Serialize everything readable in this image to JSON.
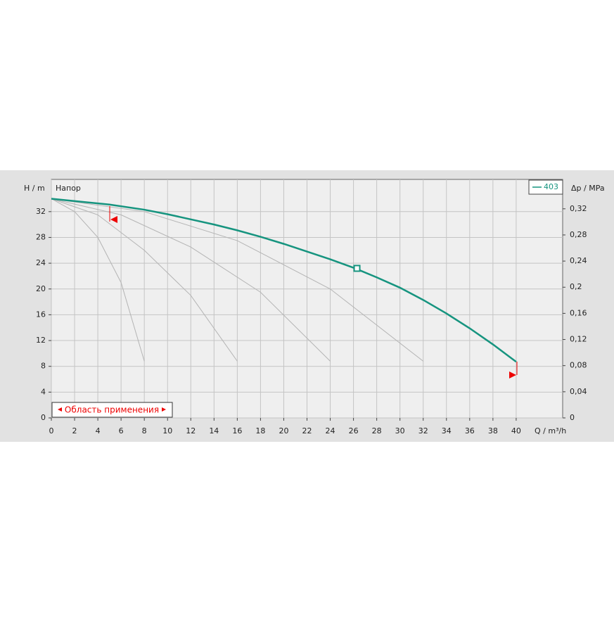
{
  "chart_data": {
    "type": "line",
    "y_label": "H / m",
    "y_title": "Напор",
    "y2_label": "Δp / MPa",
    "x_label": "Q / m³/h",
    "annotation": "Область применения",
    "xlim": [
      0,
      44
    ],
    "ylim": [
      0,
      37
    ],
    "y2lim": [
      0,
      0.365
    ],
    "xticks": [
      0,
      2,
      4,
      6,
      8,
      10,
      12,
      14,
      16,
      18,
      20,
      22,
      24,
      26,
      28,
      30,
      32,
      34,
      36,
      38,
      40
    ],
    "yticks": [
      0,
      4,
      8,
      12,
      16,
      20,
      24,
      28,
      32
    ],
    "y2ticks": [
      0,
      {
        "value": 0.04,
        "label": "0,04"
      },
      {
        "value": 0.08,
        "label": "0,08"
      },
      {
        "value": 0.12,
        "label": "0,12"
      },
      {
        "value": 0.16,
        "label": "0,16"
      },
      {
        "value": 0.2,
        "label": "0,2"
      },
      {
        "value": 0.24,
        "label": "0,24"
      },
      {
        "value": 0.28,
        "label": "0,28"
      },
      {
        "value": 0.32,
        "label": "0,32"
      }
    ],
    "grid": true,
    "series": [
      {
        "color": "#b4b4b4",
        "x": [
          0,
          2,
          4,
          6,
          8
        ],
        "values": [
          34,
          32,
          28,
          21,
          8.8
        ]
      },
      {
        "color": "#b4b4b4",
        "x": [
          0,
          4,
          8,
          12,
          16
        ],
        "values": [
          34,
          31.5,
          26,
          19,
          8.8
        ]
      },
      {
        "color": "#b4b4b4",
        "x": [
          0,
          6,
          12,
          18,
          24
        ],
        "values": [
          34,
          31.5,
          26.5,
          19.5,
          8.8
        ]
      },
      {
        "color": "#b4b4b4",
        "x": [
          0,
          8,
          16,
          24,
          32
        ],
        "values": [
          34,
          32,
          27.5,
          20,
          8.8
        ]
      },
      {
        "name": "403",
        "color": "#16947f",
        "x": [
          0,
          5,
          8,
          10,
          12,
          14,
          16,
          18,
          20,
          22,
          24,
          26,
          28,
          30,
          32,
          34,
          36,
          38,
          40
        ],
        "values": [
          34,
          33.1,
          32.3,
          31.6,
          30.8,
          30.0,
          29.1,
          28.1,
          27.0,
          25.8,
          24.6,
          23.3,
          21.8,
          20.2,
          18.3,
          16.2,
          13.9,
          11.4,
          8.7
        ]
      }
    ],
    "operating_point": {
      "x": 26.3,
      "y": 23.2
    }
  }
}
